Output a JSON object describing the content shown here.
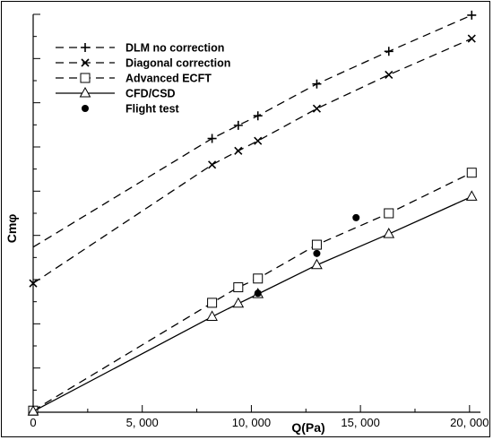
{
  "chart_data": {
    "type": "line",
    "title": "",
    "xlabel": "Q(Pa)",
    "ylabel": "Cmφ",
    "xlim": [
      0,
      20500
    ],
    "ylim": [
      0,
      1.0
    ],
    "x_ticks": [
      0,
      5000,
      10000,
      15000,
      20000
    ],
    "x_tick_labels": [
      "0",
      "5, 000",
      "10, 000",
      "15, 000",
      "20, 000"
    ],
    "y_ticks": [
      0,
      0.1111,
      0.2222,
      0.3333,
      0.4444,
      0.5556,
      0.6667,
      0.7778,
      0.8889,
      1.0
    ],
    "y_tick_labels_shown": false,
    "grid": false,
    "legend_position": "top-left",
    "series": [
      {
        "name": "DLM no correction",
        "line": "dashed",
        "marker": "plus",
        "color": "#000000",
        "x": [
          0,
          8200,
          9400,
          10300,
          13000,
          16300,
          20100
        ],
        "y": [
          0.415,
          0.688,
          0.721,
          0.745,
          0.825,
          0.907,
          0.998
        ]
      },
      {
        "name": "Diagonal correction",
        "line": "dashed",
        "marker": "x",
        "color": "#000000",
        "x": [
          0,
          8200,
          9400,
          10300,
          13000,
          16300,
          20100
        ],
        "y": [
          0.324,
          0.622,
          0.657,
          0.682,
          0.763,
          0.848,
          0.939
        ]
      },
      {
        "name": "Advanced ECFT",
        "line": "dashed",
        "marker": "square",
        "color": "#000000",
        "x": [
          0,
          8200,
          9400,
          10300,
          13000,
          16300,
          20100
        ],
        "y": [
          0.004,
          0.275,
          0.314,
          0.336,
          0.421,
          0.5,
          0.602
        ]
      },
      {
        "name": "CFD/CSD",
        "line": "solid",
        "marker": "triangle",
        "color": "#000000",
        "x": [
          0,
          8200,
          9400,
          10300,
          13000,
          16300,
          20100
        ],
        "y": [
          0.002,
          0.24,
          0.273,
          0.297,
          0.37,
          0.448,
          0.542
        ]
      },
      {
        "name": "Flight test",
        "line": "none",
        "marker": "dot",
        "color": "#000000",
        "x": [
          10300,
          13000,
          14800
        ],
        "y": [
          0.299,
          0.399,
          0.489
        ]
      }
    ]
  }
}
